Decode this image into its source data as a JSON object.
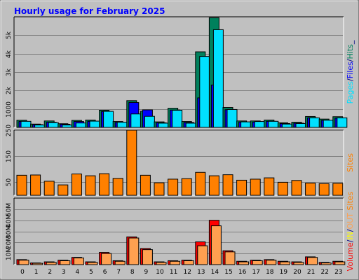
{
  "chart_data": {
    "type": "bar",
    "title": "Hourly usage for February 2025",
    "categories": [
      "0",
      "1",
      "2",
      "3",
      "4",
      "5",
      "6",
      "7",
      "8",
      "9",
      "10",
      "11",
      "12",
      "13",
      "14",
      "15",
      "16",
      "17",
      "18",
      "19",
      "20",
      "21",
      "22",
      "23"
    ],
    "colors": {
      "hits": "#00805c",
      "files": "#0000ff",
      "pages": "#00e0ff",
      "sites": "#ff8000",
      "volume": "#ff0000",
      "in": "#ffff00",
      "out": "#ffa050",
      "background": "#c0c0c0",
      "plot": "#c0c0c0",
      "title": "#0000ff"
    },
    "panels": [
      {
        "id": "hits",
        "ylim": [
          0,
          6000
        ],
        "yticks": [
          {
            "value": 1000,
            "label": "1000"
          },
          {
            "value": 2000,
            "label": "2k"
          },
          {
            "value": 3000,
            "label": "3k"
          },
          {
            "value": 4000,
            "label": "4k"
          },
          {
            "value": 5000,
            "label": "5k"
          }
        ],
        "legend": [
          {
            "text": "Pages",
            "color": "#00e0ff"
          },
          {
            "text": "/",
            "color": "#000080"
          },
          {
            "text": "Files",
            "color": "#0000ff"
          },
          {
            "text": "/",
            "color": "#000080"
          },
          {
            "text": "Hits",
            "color": "#00805c"
          },
          {
            "text": "_",
            "color": "#000080"
          }
        ],
        "series": [
          {
            "name": "Hits",
            "color": "#00805c",
            "values": [
              390,
              180,
              350,
              200,
              380,
              400,
              930,
              320,
              1450,
              880,
              300,
              1040,
              320,
              4100,
              5950,
              1080,
              350,
              350,
              400,
              250,
              280,
              590,
              450,
              580
            ]
          },
          {
            "name": "Files",
            "color": "#0000ff",
            "values": [
              320,
              150,
              280,
              170,
              320,
              330,
              860,
              270,
              1350,
              950,
              250,
              940,
              270,
              1600,
              2300,
              960,
              290,
              290,
              330,
              210,
              230,
              520,
              380,
              500
            ]
          },
          {
            "name": "Pages",
            "color": "#00e0ff",
            "values": [
              330,
              130,
              260,
              130,
              240,
              340,
              870,
              280,
              730,
              600,
              230,
              930,
              230,
              3850,
              5300,
              970,
              300,
              320,
              330,
              180,
              210,
              520,
              390,
              520
            ]
          }
        ]
      },
      {
        "id": "sites",
        "ylim": [
          0,
          250
        ],
        "yticks": [
          {
            "value": 50,
            "label": "50"
          },
          {
            "value": 150,
            "label": "150"
          },
          {
            "value": 250,
            "label": "250"
          }
        ],
        "legend": [
          {
            "text": "Sites",
            "color": "#ff8000"
          }
        ],
        "series": [
          {
            "name": "Sites",
            "color": "#ff8000",
            "values": [
              77,
              78,
              54,
              40,
              82,
              75,
              83,
              65,
              250,
              77,
              48,
              62,
              64,
              88,
              75,
              79,
              58,
              62,
              67,
              50,
              57,
              47,
              45,
              46
            ]
          }
        ]
      },
      {
        "id": "volume",
        "ylim": [
          0,
          60
        ],
        "yticks": [
          {
            "value": 10,
            "label": "10M"
          },
          {
            "value": 20,
            "label": "20M"
          },
          {
            "value": 30,
            "label": "30M"
          },
          {
            "value": 40,
            "label": "40M"
          },
          {
            "value": 50,
            "label": "50M"
          }
        ],
        "legend": [
          {
            "text": "Volume",
            "color": "#ff0000"
          },
          {
            "text": "/",
            "color": "#000080"
          },
          {
            "text": "IN",
            "color": "#ffff00"
          },
          {
            "text": "/",
            "color": "#000080"
          },
          {
            "text": "OUT",
            "color": "#ffa050"
          },
          {
            "text": " Sites",
            "color": "#ff8000"
          }
        ],
        "series": [
          {
            "name": "Volume",
            "color": "#ff0000",
            "values": [
              4.5,
              1.5,
              2.5,
              4.0,
              6.5,
              2.5,
              11,
              3.5,
              25,
              14.5,
              2.5,
              3.5,
              4.0,
              20.5,
              40,
              12.5,
              3.0,
              4.0,
              4.5,
              3.0,
              2.5,
              7.0,
              2.0,
              3.0
            ]
          },
          {
            "name": "OUT",
            "color": "#ffa050",
            "values": [
              4.0,
              1.2,
              2.0,
              3.5,
              6.0,
              2.0,
              10,
              3.0,
              24,
              13.5,
              2.0,
              3.0,
              3.5,
              17,
              35,
              11.5,
              2.5,
              3.5,
              4.0,
              2.5,
              2.0,
              6.5,
              1.5,
              2.5
            ]
          }
        ]
      }
    ]
  }
}
